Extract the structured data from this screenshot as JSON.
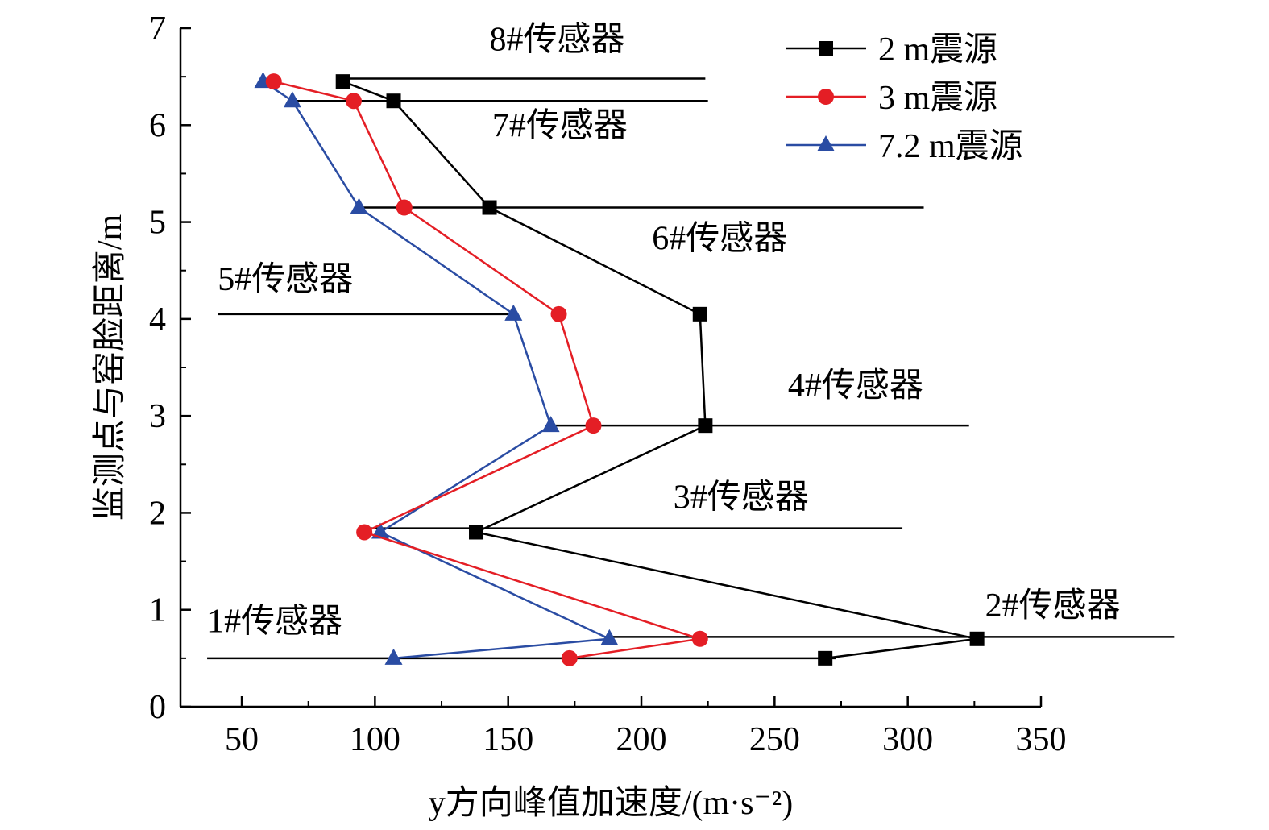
{
  "chart_data": {
    "type": "line",
    "xlabel": "y方向峰值加速度/(m·s⁻²)",
    "ylabel": "监测点与窑脸距离/m",
    "xlim": [
      27,
      350
    ],
    "ylim": [
      0,
      7
    ],
    "x_ticks": [
      50,
      100,
      150,
      200,
      250,
      300,
      350
    ],
    "y_ticks": [
      0,
      1,
      2,
      3,
      4,
      5,
      6,
      7
    ],
    "grid": false,
    "legend_position": "top-right",
    "series": [
      {
        "name": "2 m震源",
        "color": "#000000",
        "marker": "square",
        "points": [
          [
            88,
            6.45
          ],
          [
            107,
            6.25
          ],
          [
            143,
            5.15
          ],
          [
            222,
            4.05
          ],
          [
            224,
            2.9
          ],
          [
            138,
            1.8
          ],
          [
            326,
            0.7
          ],
          [
            269,
            0.5
          ]
        ]
      },
      {
        "name": "3 m震源",
        "color": "#e41e25",
        "marker": "circle",
        "points": [
          [
            62,
            6.45
          ],
          [
            92,
            6.25
          ],
          [
            111,
            5.15
          ],
          [
            169,
            4.05
          ],
          [
            182,
            2.9
          ],
          [
            96,
            1.8
          ],
          [
            222,
            0.7
          ],
          [
            173,
            0.5
          ]
        ]
      },
      {
        "name": "7.2 m震源",
        "color": "#2a4ca3",
        "marker": "triangle",
        "points": [
          [
            58,
            6.45
          ],
          [
            69,
            6.25
          ],
          [
            94,
            5.15
          ],
          [
            152,
            4.05
          ],
          [
            166,
            2.9
          ],
          [
            102,
            1.8
          ],
          [
            188,
            0.7
          ],
          [
            107,
            0.5
          ]
        ]
      }
    ],
    "sensors": [
      {
        "label": "1#传感器",
        "y": 0.5,
        "x_start": 37,
        "x_end": 273,
        "label_x": 37,
        "label_y": 0.77
      },
      {
        "label": "2#传感器",
        "y": 0.72,
        "x_start": 186,
        "x_end": 400,
        "label_x": 329,
        "label_y": 0.93
      },
      {
        "label": "3#传感器",
        "y": 1.84,
        "x_start": 95,
        "x_end": 298,
        "label_x": 212,
        "label_y": 2.05
      },
      {
        "label": "4#传感器",
        "y": 2.9,
        "x_start": 166,
        "x_end": 323,
        "label_x": 255,
        "label_y": 3.2
      },
      {
        "label": "5#传感器",
        "y": 4.05,
        "x_start": 41,
        "x_end": 153,
        "label_x": 41,
        "label_y": 4.3
      },
      {
        "label": "6#传感器",
        "y": 5.15,
        "x_start": 94,
        "x_end": 306,
        "label_x": 204,
        "label_y": 4.72
      },
      {
        "label": "7#传感器",
        "y": 6.25,
        "x_start": 69,
        "x_end": 225,
        "label_x": 144,
        "label_y": 5.88
      },
      {
        "label": "8#传感器",
        "y": 6.48,
        "x_start": 88,
        "x_end": 224,
        "label_x": 143,
        "label_y": 6.77
      }
    ]
  }
}
